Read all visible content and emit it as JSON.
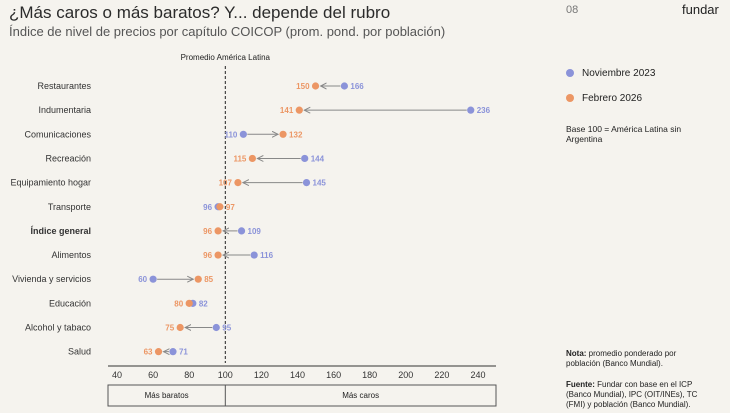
{
  "header": {
    "title": "¿Más caros o más baratos? Y... depende del rubro",
    "subtitle": "Índice de nivel de precios por capítulo COICOP (prom. pond. por población)",
    "page_number": "08",
    "brand": "fundar"
  },
  "legend": {
    "items": [
      {
        "label": "Noviembre 2023",
        "color": "#8b93d9"
      },
      {
        "label": "Febrero 2026",
        "color": "#ec9664"
      }
    ],
    "base_note": "Base 100 = América Latina sin Argentina"
  },
  "footer": {
    "note_label": "Nota:",
    "note_text": " promedio ponderado por población (Banco Mundial).",
    "source_label": "Fuente:",
    "source_text": " Fundar con base en el ICP (Banco Mundial), IPC (OIT/INEs), TC (FMI) y población (Banco Mundial)."
  },
  "chart_data": {
    "type": "dumbbell",
    "reference_line": {
      "value": 100,
      "label": "Promedio América Latina"
    },
    "xlim": [
      35,
      250
    ],
    "xticks": [
      40,
      60,
      80,
      100,
      120,
      140,
      160,
      180,
      200,
      220,
      240
    ],
    "zones": [
      {
        "label": "Más baratos",
        "from": 35,
        "to": 100
      },
      {
        "label": "Más caros",
        "from": 100,
        "to": 250
      }
    ],
    "series": [
      {
        "name": "Noviembre 2023",
        "color": "#8b93d9"
      },
      {
        "name": "Febrero 2026",
        "color": "#ec9664"
      }
    ],
    "categories": [
      {
        "label": "Restaurantes",
        "nov2023": 166,
        "feb2026": 150,
        "bold": false
      },
      {
        "label": "Indumentaria",
        "nov2023": 236,
        "feb2026": 141,
        "bold": false
      },
      {
        "label": "Comunicaciones",
        "nov2023": 110,
        "feb2026": 132,
        "bold": false
      },
      {
        "label": "Recreación",
        "nov2023": 144,
        "feb2026": 115,
        "bold": false
      },
      {
        "label": "Equipamiento hogar",
        "nov2023": 145,
        "feb2026": 107,
        "bold": false
      },
      {
        "label": "Transporte",
        "nov2023": 96,
        "feb2026": 97,
        "bold": false
      },
      {
        "label": "Índice general",
        "nov2023": 109,
        "feb2026": 96,
        "bold": true
      },
      {
        "label": "Alimentos",
        "nov2023": 116,
        "feb2026": 96,
        "bold": false
      },
      {
        "label": "Vivienda y servicios",
        "nov2023": 60,
        "feb2026": 85,
        "bold": false
      },
      {
        "label": "Educación",
        "nov2023": 82,
        "feb2026": 80,
        "bold": false
      },
      {
        "label": "Alcohol y tabaco",
        "nov2023": 95,
        "feb2026": 75,
        "bold": false
      },
      {
        "label": "Salud",
        "nov2023": 71,
        "feb2026": 63,
        "bold": false
      }
    ]
  }
}
